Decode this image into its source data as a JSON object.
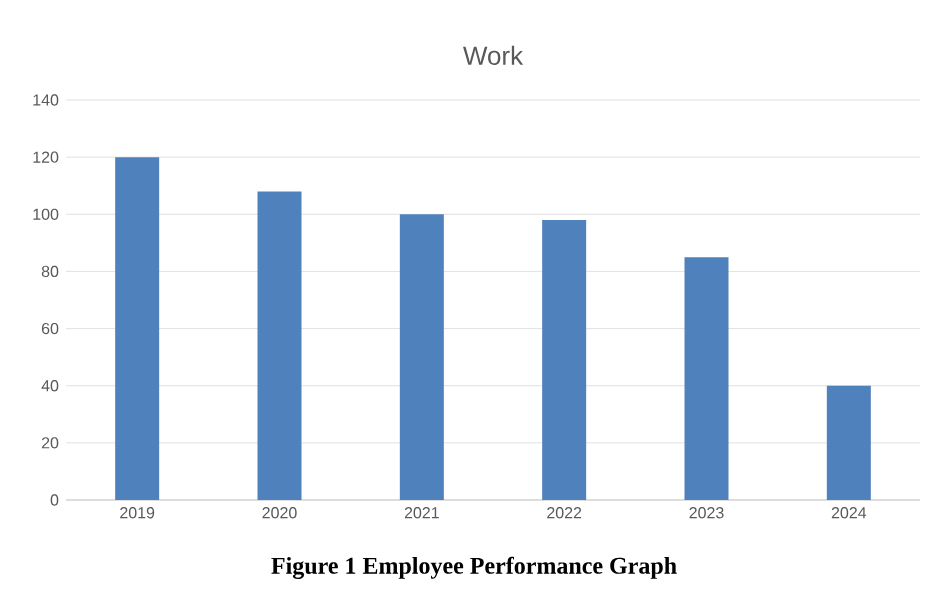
{
  "chart_data": {
    "type": "bar",
    "title": "Work",
    "categories": [
      "2019",
      "2020",
      "2021",
      "2022",
      "2023",
      "2024"
    ],
    "values": [
      120,
      108,
      100,
      98,
      85,
      40
    ],
    "color": "#4f81bd",
    "ylim": [
      0,
      140
    ],
    "yticks": [
      0,
      20,
      40,
      60,
      80,
      100,
      120,
      140
    ],
    "grid": "y",
    "annotations": [
      "**Figure 1 Employee Performance Graph**"
    ]
  }
}
